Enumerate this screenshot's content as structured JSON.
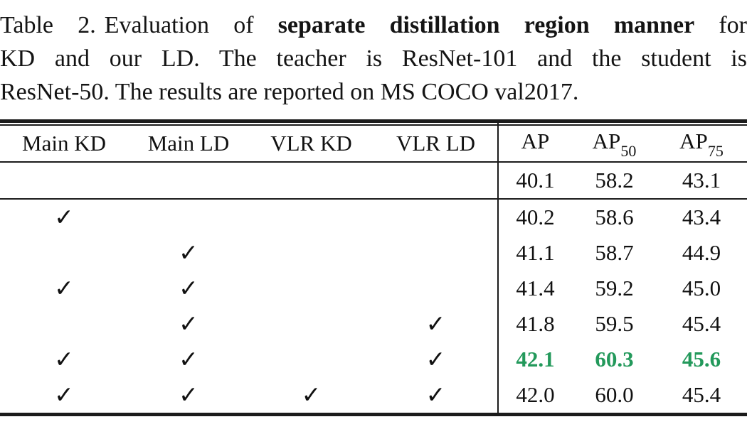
{
  "caption": {
    "label": "Table 2.",
    "line1_pre": "Evaluation of ",
    "line1_bold": "separate distillation region manner",
    "line1_post": " for",
    "line2": "KD and our LD. The teacher is ResNet-101 and the student is",
    "line3": "ResNet-50. The results are reported on MS COCO val2017."
  },
  "table": {
    "left_headers": [
      "Main KD",
      "Main LD",
      "VLR KD",
      "VLR LD"
    ],
    "right_headers": [
      {
        "base": "AP",
        "sub": ""
      },
      {
        "base": "AP",
        "sub": "50"
      },
      {
        "base": "AP",
        "sub": "75"
      }
    ],
    "checkmark": "✓",
    "highlight_color": "#23995b",
    "rows": [
      {
        "checks": [
          false,
          false,
          false,
          false
        ],
        "values": [
          "40.1",
          "58.2",
          "43.1"
        ],
        "highlight": false
      },
      {
        "checks": [
          true,
          false,
          false,
          false
        ],
        "values": [
          "40.2",
          "58.6",
          "43.4"
        ],
        "highlight": false
      },
      {
        "checks": [
          false,
          true,
          false,
          false
        ],
        "values": [
          "41.1",
          "58.7",
          "44.9"
        ],
        "highlight": false
      },
      {
        "checks": [
          true,
          true,
          false,
          false
        ],
        "values": [
          "41.4",
          "59.2",
          "45.0"
        ],
        "highlight": false
      },
      {
        "checks": [
          false,
          true,
          false,
          true
        ],
        "values": [
          "41.8",
          "59.5",
          "45.4"
        ],
        "highlight": false
      },
      {
        "checks": [
          true,
          true,
          false,
          true
        ],
        "values": [
          "42.1",
          "60.3",
          "45.6"
        ],
        "highlight": true
      },
      {
        "checks": [
          true,
          true,
          true,
          true
        ],
        "values": [
          "42.0",
          "60.0",
          "45.4"
        ],
        "highlight": false
      }
    ]
  }
}
